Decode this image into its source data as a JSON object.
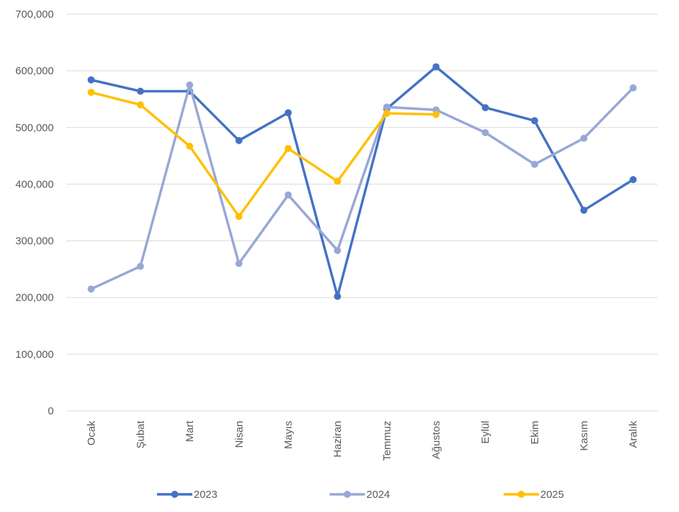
{
  "chart_data": {
    "type": "line",
    "categories": [
      "Ocak",
      "Şubat",
      "Mart",
      "Nisan",
      "Mayıs",
      "Haziran",
      "Temmuz",
      "Ağustos",
      "Eylül",
      "Ekim",
      "Kasım",
      "Aralık"
    ],
    "series": [
      {
        "name": "2023",
        "color": "#4472c4",
        "values": [
          584000,
          564000,
          564000,
          477000,
          526000,
          202000,
          533000,
          607000,
          535000,
          512000,
          354000,
          408000
        ]
      },
      {
        "name": "2024",
        "color": "#98a8d6",
        "values": [
          215000,
          255000,
          575000,
          260000,
          381000,
          283000,
          536000,
          531000,
          491000,
          435000,
          481000,
          570000
        ]
      },
      {
        "name": "2025",
        "color": "#ffc000",
        "values": [
          562000,
          540000,
          467000,
          343000,
          463000,
          405000,
          525000,
          523000,
          null,
          null,
          null,
          null
        ]
      }
    ],
    "y_ticks": [
      "0",
      "100,000",
      "200,000",
      "300,000",
      "400,000",
      "500,000",
      "600,000",
      "700,000"
    ],
    "y_tick_values": [
      0,
      100000,
      200000,
      300000,
      400000,
      500000,
      600000,
      700000
    ],
    "ylim": [
      0,
      700000
    ],
    "title": "",
    "xlabel": "",
    "ylabel": "",
    "grid": true,
    "legend": "bottom"
  }
}
